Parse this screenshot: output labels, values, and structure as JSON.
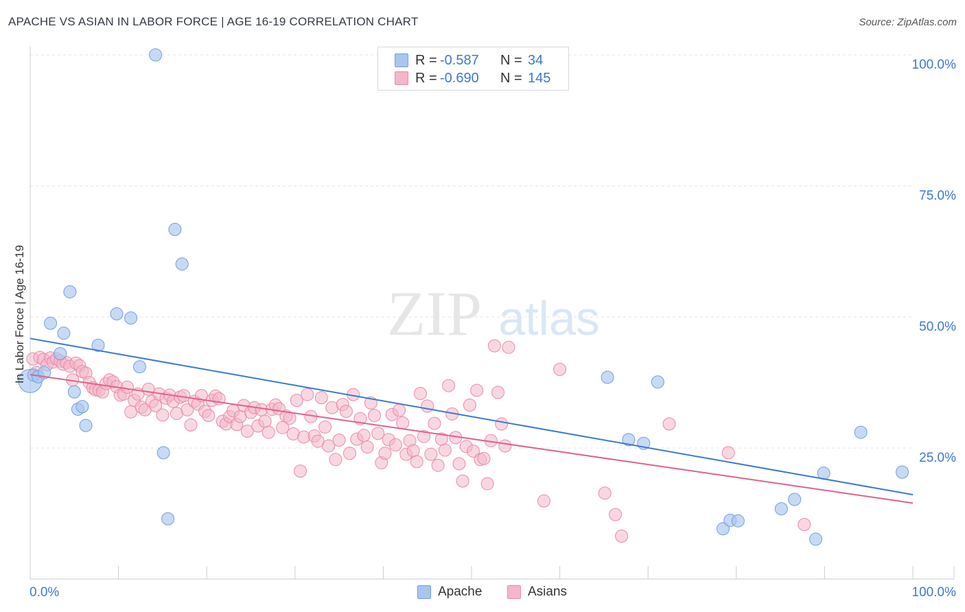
{
  "title": "APACHE VS ASIAN IN LABOR FORCE | AGE 16-19 CORRELATION CHART",
  "source": "Source: ZipAtlas.com",
  "watermark": {
    "zip": "ZIP",
    "atlas": "atlas"
  },
  "legend_top": {
    "rows": [
      {
        "r_label": "R =",
        "r_value": "-0.587",
        "n_label": "N =",
        "n_value": "34"
      },
      {
        "r_label": "R =",
        "r_value": "-0.690",
        "n_label": "N =",
        "n_value": "145"
      }
    ]
  },
  "legend_bottom": {
    "items": [
      "Apache",
      "Asians"
    ]
  },
  "colors": {
    "apache_fill": "#a9c6ef",
    "apache_stroke": "#6f9fdc",
    "apache_line": "#3a78d0",
    "asians_fill": "#f4b6c9",
    "asians_stroke": "#e88aa8",
    "asians_line": "#e0608f",
    "axis_text": "#3b78d0",
    "grid": "#e3e3e3"
  },
  "chart_data": {
    "type": "scatter",
    "title": "APACHE VS ASIAN IN LABOR FORCE | AGE 16-19 CORRELATION CHART",
    "xlabel": "",
    "ylabel": "In Labor Force | Age 16-19",
    "xlim": [
      0,
      100
    ],
    "ylim": [
      0,
      105
    ],
    "x_tick_labels": [
      "0.0%",
      "100.0%"
    ],
    "y_ticks": [
      25,
      50,
      75,
      100
    ],
    "y_tick_labels": [
      "25.0%",
      "50.0%",
      "75.0%",
      "100.0%"
    ],
    "grid": true,
    "legend_position": "top-center",
    "series": [
      {
        "name": "Apache",
        "r": -0.587,
        "n": 34,
        "trend": {
          "x": [
            0,
            100
          ],
          "y": [
            45.9,
            16.1
          ]
        },
        "points": [
          [
            0,
            37.8
          ],
          [
            0.4,
            38.9
          ],
          [
            0.9,
            38.6
          ],
          [
            1.6,
            39.4
          ],
          [
            2.3,
            48.8
          ],
          [
            3.4,
            43.0
          ],
          [
            3.8,
            46.9
          ],
          [
            4.5,
            54.8
          ],
          [
            5.0,
            35.7
          ],
          [
            5.4,
            32.4
          ],
          [
            5.9,
            32.9
          ],
          [
            6.3,
            29.3
          ],
          [
            7.7,
            44.6
          ],
          [
            9.8,
            50.6
          ],
          [
            11.4,
            49.8
          ],
          [
            12.4,
            40.5
          ],
          [
            14.2,
            100.0
          ],
          [
            15.1,
            24.1
          ],
          [
            15.6,
            11.5
          ],
          [
            16.4,
            66.7
          ],
          [
            17.2,
            60.1
          ],
          [
            65.4,
            38.5
          ],
          [
            67.8,
            26.6
          ],
          [
            69.5,
            25.9
          ],
          [
            71.1,
            37.6
          ],
          [
            78.5,
            9.6
          ],
          [
            79.3,
            11.2
          ],
          [
            80.2,
            11.1
          ],
          [
            85.1,
            13.4
          ],
          [
            86.6,
            15.2
          ],
          [
            89.0,
            7.6
          ],
          [
            89.9,
            20.2
          ],
          [
            94.1,
            28.0
          ],
          [
            98.8,
            20.4
          ]
        ]
      },
      {
        "name": "Asians",
        "r": -0.69,
        "n": 145,
        "trend": {
          "x": [
            0,
            100
          ],
          "y": [
            39.0,
            14.5
          ]
        },
        "points": [
          [
            0.3,
            42.0
          ],
          [
            0.7,
            39.4
          ],
          [
            1.1,
            42.3
          ],
          [
            1.5,
            41.9
          ],
          [
            1.9,
            40.9
          ],
          [
            2.3,
            42.2
          ],
          [
            2.6,
            41.4
          ],
          [
            3.0,
            42.0
          ],
          [
            3.4,
            41.6
          ],
          [
            3.7,
            41.0
          ],
          [
            4.1,
            41.3
          ],
          [
            4.5,
            40.6
          ],
          [
            4.8,
            38.0
          ],
          [
            5.2,
            41.2
          ],
          [
            5.6,
            40.7
          ],
          [
            5.9,
            39.6
          ],
          [
            6.3,
            39.3
          ],
          [
            6.7,
            37.5
          ],
          [
            7.1,
            36.5
          ],
          [
            7.4,
            36.1
          ],
          [
            7.8,
            36.0
          ],
          [
            8.2,
            35.7
          ],
          [
            8.6,
            37.3
          ],
          [
            9.0,
            38.0
          ],
          [
            9.4,
            37.6
          ],
          [
            9.8,
            36.7
          ],
          [
            10.2,
            35.1
          ],
          [
            10.6,
            35.3
          ],
          [
            11.0,
            36.6
          ],
          [
            11.4,
            31.9
          ],
          [
            11.8,
            34.1
          ],
          [
            12.2,
            35.3
          ],
          [
            12.6,
            32.8
          ],
          [
            13.0,
            32.3
          ],
          [
            13.4,
            36.2
          ],
          [
            13.8,
            33.9
          ],
          [
            14.2,
            33.1
          ],
          [
            14.6,
            35.3
          ],
          [
            15.0,
            31.3
          ],
          [
            15.4,
            34.5
          ],
          [
            15.8,
            35.1
          ],
          [
            16.2,
            33.9
          ],
          [
            16.6,
            31.6
          ],
          [
            17.0,
            34.7
          ],
          [
            17.4,
            35.0
          ],
          [
            17.8,
            32.3
          ],
          [
            18.2,
            29.4
          ],
          [
            18.6,
            33.9
          ],
          [
            19.0,
            33.4
          ],
          [
            19.4,
            35.0
          ],
          [
            19.8,
            32.0
          ],
          [
            20.2,
            31.2
          ],
          [
            20.6,
            34.1
          ],
          [
            21.0,
            34.9
          ],
          [
            21.4,
            34.4
          ],
          [
            21.8,
            30.1
          ],
          [
            22.2,
            29.6
          ],
          [
            22.6,
            31.0
          ],
          [
            23.0,
            32.1
          ],
          [
            23.4,
            29.5
          ],
          [
            23.8,
            31.0
          ],
          [
            24.2,
            33.1
          ],
          [
            24.6,
            28.2
          ],
          [
            25.0,
            31.8
          ],
          [
            25.4,
            32.7
          ],
          [
            25.8,
            29.2
          ],
          [
            26.2,
            32.3
          ],
          [
            26.6,
            30.1
          ],
          [
            27.0,
            28.0
          ],
          [
            27.4,
            32.4
          ],
          [
            27.8,
            33.2
          ],
          [
            28.2,
            32.5
          ],
          [
            28.6,
            28.9
          ],
          [
            29.0,
            31.1
          ],
          [
            29.4,
            30.7
          ],
          [
            29.8,
            27.7
          ],
          [
            30.2,
            34.1
          ],
          [
            30.6,
            20.6
          ],
          [
            31.0,
            27.1
          ],
          [
            31.4,
            35.2
          ],
          [
            31.8,
            31.0
          ],
          [
            32.2,
            27.3
          ],
          [
            32.6,
            26.3
          ],
          [
            33.0,
            34.6
          ],
          [
            33.4,
            29.0
          ],
          [
            33.8,
            25.4
          ],
          [
            34.2,
            32.7
          ],
          [
            34.6,
            22.8
          ],
          [
            35.0,
            26.5
          ],
          [
            35.4,
            33.3
          ],
          [
            35.8,
            32.0
          ],
          [
            36.2,
            24.0
          ],
          [
            36.6,
            35.2
          ],
          [
            37.0,
            26.7
          ],
          [
            37.4,
            30.6
          ],
          [
            37.8,
            27.4
          ],
          [
            38.2,
            25.2
          ],
          [
            38.6,
            33.6
          ],
          [
            39.0,
            31.2
          ],
          [
            39.4,
            27.8
          ],
          [
            39.8,
            22.2
          ],
          [
            40.2,
            24.0
          ],
          [
            40.6,
            26.6
          ],
          [
            41.0,
            31.4
          ],
          [
            41.4,
            25.6
          ],
          [
            41.8,
            32.2
          ],
          [
            42.2,
            29.8
          ],
          [
            42.6,
            23.8
          ],
          [
            43.0,
            26.4
          ],
          [
            43.4,
            24.5
          ],
          [
            43.8,
            22.4
          ],
          [
            44.2,
            35.4
          ],
          [
            44.6,
            27.2
          ],
          [
            45.0,
            33.0
          ],
          [
            45.4,
            23.8
          ],
          [
            45.8,
            29.7
          ],
          [
            46.2,
            21.7
          ],
          [
            46.6,
            26.7
          ],
          [
            47.0,
            24.6
          ],
          [
            47.4,
            36.9
          ],
          [
            47.8,
            31.5
          ],
          [
            48.2,
            27.0
          ],
          [
            48.6,
            22.0
          ],
          [
            49.0,
            18.7
          ],
          [
            49.4,
            25.3
          ],
          [
            49.8,
            33.2
          ],
          [
            50.2,
            24.4
          ],
          [
            50.6,
            36.0
          ],
          [
            51.0,
            22.8
          ],
          [
            51.4,
            23.0
          ],
          [
            51.8,
            18.2
          ],
          [
            52.2,
            26.4
          ],
          [
            52.6,
            44.5
          ],
          [
            53.0,
            35.6
          ],
          [
            53.4,
            29.6
          ],
          [
            53.8,
            25.4
          ],
          [
            54.2,
            44.2
          ],
          [
            58.2,
            14.9
          ],
          [
            65.1,
            16.4
          ],
          [
            66.3,
            12.3
          ],
          [
            67.0,
            8.2
          ],
          [
            72.4,
            29.6
          ],
          [
            79.1,
            24.1
          ],
          [
            87.7,
            10.4
          ],
          [
            60.0,
            40.0
          ]
        ]
      }
    ]
  }
}
